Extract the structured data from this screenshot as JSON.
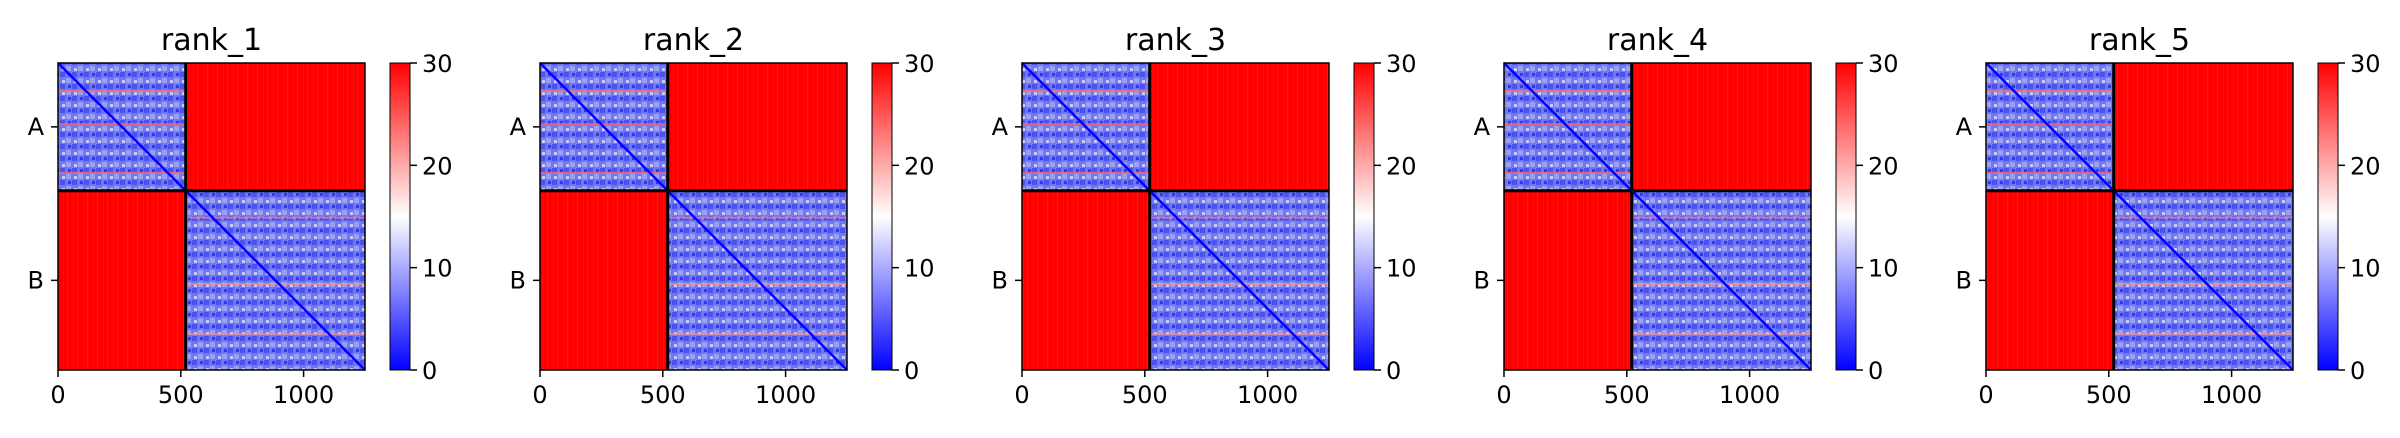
{
  "chart_data": [
    {
      "type": "heatmap",
      "title": "rank_1",
      "x_ticks": [
        "0",
        "500",
        "1000"
      ],
      "x_tick_values": [
        0,
        500,
        1000
      ],
      "y_ticks": [
        "A",
        "B"
      ],
      "colorbar_ticks": [
        "0",
        "10",
        "20",
        "30"
      ],
      "colorbar_range": [
        0,
        30
      ],
      "colormap": "bwr",
      "n": 1250,
      "boundary": 520,
      "blocks": {
        "A-A": "low (blue, ~5-12)",
        "A-B": "high (red, >=30)",
        "B-A": "high (red, >=30)",
        "B-B": "low (blue, ~5-12)"
      }
    },
    {
      "type": "heatmap",
      "title": "rank_2",
      "x_ticks": [
        "0",
        "500",
        "1000"
      ],
      "x_tick_values": [
        0,
        500,
        1000
      ],
      "y_ticks": [
        "A",
        "B"
      ],
      "colorbar_ticks": [
        "0",
        "10",
        "20",
        "30"
      ],
      "colorbar_range": [
        0,
        30
      ],
      "colormap": "bwr",
      "n": 1250,
      "boundary": 520,
      "blocks": {
        "A-A": "low (blue, ~5-12)",
        "A-B": "high (red, >=30)",
        "B-A": "high (red, >=30)",
        "B-B": "low (blue, ~5-12)"
      }
    },
    {
      "type": "heatmap",
      "title": "rank_3",
      "x_ticks": [
        "0",
        "500",
        "1000"
      ],
      "x_tick_values": [
        0,
        500,
        1000
      ],
      "y_ticks": [
        "A",
        "B"
      ],
      "colorbar_ticks": [
        "0",
        "10",
        "20",
        "30"
      ],
      "colorbar_range": [
        0,
        30
      ],
      "colormap": "bwr",
      "n": 1250,
      "boundary": 520,
      "blocks": {
        "A-A": "low (blue, ~5-12)",
        "A-B": "high (red, >=30)",
        "B-A": "high (red, >=30)",
        "B-B": "low (blue, ~5-12)"
      }
    },
    {
      "type": "heatmap",
      "title": "rank_4",
      "x_ticks": [
        "0",
        "500",
        "1000"
      ],
      "x_tick_values": [
        0,
        500,
        1000
      ],
      "y_ticks": [
        "A",
        "B"
      ],
      "colorbar_ticks": [
        "0",
        "10",
        "20",
        "30"
      ],
      "colorbar_range": [
        0,
        30
      ],
      "colormap": "bwr",
      "n": 1250,
      "boundary": 520,
      "blocks": {
        "A-A": "low (blue, ~5-12)",
        "A-B": "high (red, >=30)",
        "B-A": "high (red, >=30)",
        "B-B": "low (blue, ~5-12)"
      }
    },
    {
      "type": "heatmap",
      "title": "rank_5",
      "x_ticks": [
        "0",
        "500",
        "1000"
      ],
      "x_tick_values": [
        0,
        500,
        1000
      ],
      "y_ticks": [
        "A",
        "B"
      ],
      "colorbar_ticks": [
        "0",
        "10",
        "20",
        "30"
      ],
      "colorbar_range": [
        0,
        30
      ],
      "colormap": "bwr",
      "n": 1250,
      "boundary": 520,
      "blocks": {
        "A-A": "low (blue, ~5-12)",
        "A-B": "high (red, >=30)",
        "B-A": "high (red, >=30)",
        "B-B": "low (blue, ~5-12)"
      }
    }
  ],
  "colors": {
    "low": "#0000ff",
    "mid": "#ffffff",
    "high": "#ff0000"
  }
}
